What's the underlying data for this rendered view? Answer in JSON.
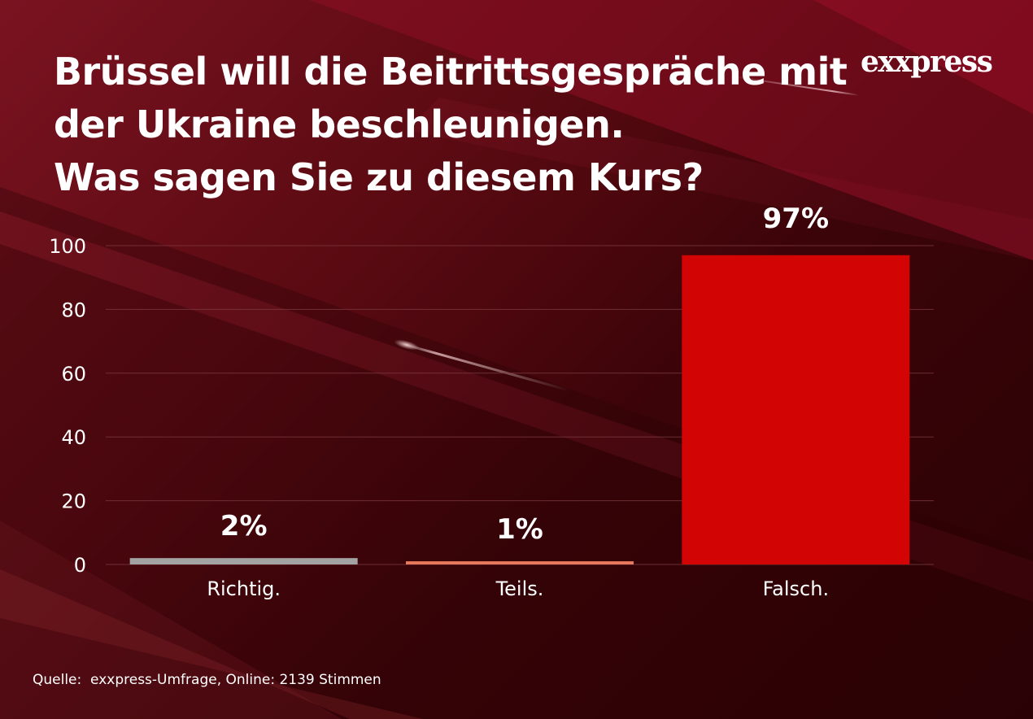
{
  "title_lines": [
    "Brüssel will die Beitrittsgespräche mit",
    "der Ukraine beschleunigen.",
    "Was sagen Sie zu diesem Kurs?"
  ],
  "logo": {
    "text": "exxpress"
  },
  "source": "Quelle:  exxpress-Umfrage, Online: 2139 Stimmen",
  "colors": {
    "background_dark": "#3b0408",
    "background_light": "#7a1320",
    "bar_richtig": "#a3a3a3",
    "bar_teils": "#e8795c",
    "bar_falsch": "#d20404",
    "grid": "#7a3a3f"
  },
  "chart_data": {
    "type": "bar",
    "categories": [
      "Richtig.",
      "Teils.",
      "Falsch."
    ],
    "values": [
      2,
      1,
      97
    ],
    "value_labels": [
      "2%",
      "1%",
      "97%"
    ],
    "yticks": [
      "0",
      "20",
      "40",
      "60",
      "80",
      "100"
    ],
    "ytick_values": [
      0,
      20,
      40,
      60,
      80,
      100
    ],
    "ylim": [
      0,
      100
    ],
    "grid": true,
    "xlabel": "",
    "ylabel": ""
  }
}
